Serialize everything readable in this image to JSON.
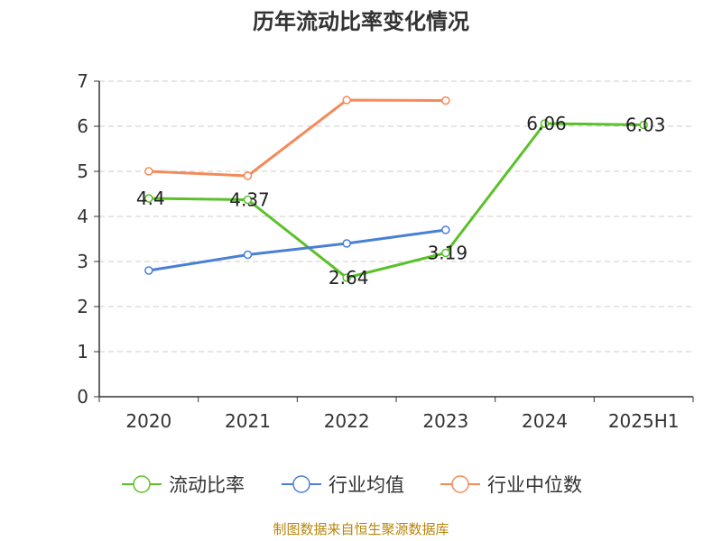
{
  "title": "历年流动比率变化情况",
  "source": "制图数据来自恒生聚源数据库",
  "chart_data": {
    "type": "line",
    "categories": [
      "2020",
      "2021",
      "2022",
      "2023",
      "2024",
      "2025H1"
    ],
    "ylim": [
      0,
      7
    ],
    "yticks": [
      0,
      1,
      2,
      3,
      4,
      5,
      6,
      7
    ],
    "grid": true,
    "legend_position": "bottom",
    "series": [
      {
        "name": "流动比率",
        "color": "#5ac12a",
        "values": [
          4.4,
          4.37,
          2.64,
          3.19,
          6.06,
          6.03
        ],
        "labels": [
          "4.4",
          "4.37",
          "2.64",
          "3.19",
          "6.06",
          "6.03"
        ]
      },
      {
        "name": "行业均值",
        "color": "#4a7fd6",
        "values": [
          2.8,
          3.15,
          3.4,
          3.7,
          null,
          null
        ]
      },
      {
        "name": "行业中位数",
        "color": "#f5895a",
        "values": [
          5.0,
          4.9,
          6.58,
          6.57,
          null,
          null
        ]
      }
    ]
  }
}
